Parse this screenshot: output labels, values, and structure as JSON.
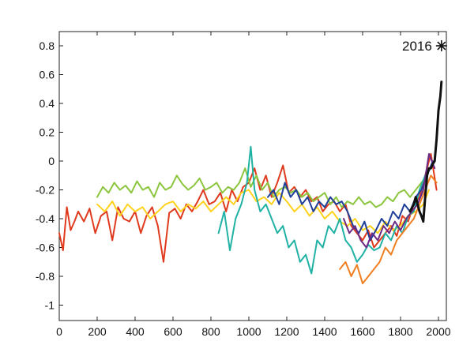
{
  "chart_data": {
    "type": "line",
    "title": "",
    "xlabel": "",
    "ylabel": "",
    "xlim": [
      0,
      2020
    ],
    "ylim": [
      -1.1,
      0.9
    ],
    "grid": false,
    "legend": "none",
    "x_ticks": [
      0,
      200,
      400,
      600,
      800,
      1000,
      1200,
      1400,
      1600,
      1800,
      2000
    ],
    "y_ticks": [
      0.8,
      0.6,
      0.4,
      0.2,
      0,
      -0.2,
      -0.4,
      -0.6,
      -0.8,
      -1
    ],
    "y_tick_labels": [
      "0.8",
      "0.6",
      "0.4",
      "0.2",
      "0",
      "-0.2",
      "-0.4",
      "-0.6",
      "-0.8",
      "-1"
    ],
    "annotation": {
      "text": "2016",
      "x": 2016,
      "y": 0.8,
      "marker": "asterisk"
    },
    "series": [
      {
        "color": "#e03a1e",
        "x": [
          0,
          20,
          40,
          60,
          80,
          100,
          130,
          160,
          190,
          220,
          250,
          280,
          310,
          340,
          370,
          400,
          430,
          460,
          490,
          520,
          550,
          580,
          610,
          640,
          670,
          700,
          730,
          760,
          790,
          820,
          850,
          880,
          910,
          940,
          970,
          1000,
          1030,
          1060,
          1090,
          1120,
          1150,
          1180,
          1210,
          1240,
          1270,
          1300,
          1330,
          1360,
          1390,
          1420,
          1450,
          1480,
          1510,
          1540,
          1570,
          1600,
          1630,
          1660,
          1690,
          1720,
          1750,
          1780,
          1810,
          1840,
          1870,
          1900,
          1930,
          1960,
          1990
        ],
        "y": [
          -0.5,
          -0.62,
          -0.32,
          -0.48,
          -0.42,
          -0.35,
          -0.42,
          -0.33,
          -0.5,
          -0.38,
          -0.35,
          -0.55,
          -0.32,
          -0.4,
          -0.42,
          -0.35,
          -0.5,
          -0.38,
          -0.32,
          -0.45,
          -0.7,
          -0.36,
          -0.33,
          -0.4,
          -0.3,
          -0.35,
          -0.28,
          -0.2,
          -0.3,
          -0.28,
          -0.22,
          -0.35,
          -0.2,
          -0.28,
          -0.18,
          -0.15,
          -0.05,
          -0.2,
          -0.1,
          -0.25,
          -0.15,
          -0.03,
          -0.22,
          -0.18,
          -0.25,
          -0.2,
          -0.28,
          -0.25,
          -0.35,
          -0.3,
          -0.28,
          -0.35,
          -0.3,
          -0.45,
          -0.5,
          -0.55,
          -0.48,
          -0.6,
          -0.55,
          -0.5,
          -0.45,
          -0.52,
          -0.38,
          -0.42,
          -0.3,
          -0.25,
          -0.1,
          0.05,
          -0.2
        ]
      },
      {
        "color": "#8cc63f",
        "x": [
          200,
          230,
          260,
          290,
          320,
          350,
          380,
          410,
          440,
          470,
          500,
          530,
          560,
          590,
          620,
          650,
          680,
          710,
          740,
          770,
          800,
          830,
          860,
          890,
          920,
          950,
          980,
          1010,
          1040,
          1070,
          1100,
          1130,
          1160,
          1190,
          1220,
          1250,
          1280,
          1310,
          1340,
          1370,
          1400,
          1430,
          1460,
          1490,
          1520,
          1550,
          1580,
          1610,
          1640,
          1670,
          1700,
          1730,
          1760,
          1790,
          1820,
          1850,
          1880,
          1910,
          1940
        ],
        "y": [
          -0.25,
          -0.18,
          -0.22,
          -0.15,
          -0.2,
          -0.17,
          -0.22,
          -0.14,
          -0.2,
          -0.18,
          -0.25,
          -0.15,
          -0.2,
          -0.18,
          -0.1,
          -0.16,
          -0.2,
          -0.17,
          -0.12,
          -0.2,
          -0.18,
          -0.15,
          -0.22,
          -0.18,
          -0.2,
          -0.15,
          -0.05,
          -0.18,
          -0.1,
          -0.2,
          -0.15,
          -0.25,
          -0.2,
          -0.18,
          -0.22,
          -0.2,
          -0.25,
          -0.22,
          -0.28,
          -0.25,
          -0.22,
          -0.3,
          -0.25,
          -0.32,
          -0.28,
          -0.3,
          -0.25,
          -0.3,
          -0.28,
          -0.32,
          -0.3,
          -0.25,
          -0.28,
          -0.22,
          -0.2,
          -0.25,
          -0.2,
          -0.15,
          -0.1
        ]
      },
      {
        "color": "#ffd21e",
        "x": [
          200,
          240,
          280,
          320,
          360,
          400,
          440,
          480,
          520,
          560,
          600,
          640,
          680,
          720,
          760,
          800,
          840,
          880,
          920,
          960,
          1000,
          1040,
          1080,
          1120,
          1160,
          1200,
          1240,
          1280,
          1320,
          1360,
          1400,
          1440,
          1480,
          1520,
          1560,
          1600,
          1640,
          1680,
          1720,
          1760,
          1800,
          1840,
          1880,
          1920,
          1950
        ],
        "y": [
          -0.3,
          -0.35,
          -0.28,
          -0.38,
          -0.3,
          -0.35,
          -0.32,
          -0.4,
          -0.35,
          -0.3,
          -0.28,
          -0.35,
          -0.3,
          -0.33,
          -0.28,
          -0.35,
          -0.3,
          -0.25,
          -0.3,
          -0.22,
          -0.2,
          -0.28,
          -0.25,
          -0.3,
          -0.22,
          -0.28,
          -0.35,
          -0.3,
          -0.38,
          -0.32,
          -0.4,
          -0.35,
          -0.42,
          -0.45,
          -0.4,
          -0.48,
          -0.45,
          -0.5,
          -0.42,
          -0.48,
          -0.45,
          -0.38,
          -0.35,
          -0.3,
          -0.2
        ]
      },
      {
        "color": "#20b2a4",
        "x": [
          840,
          870,
          900,
          930,
          960,
          990,
          1010,
          1030,
          1060,
          1090,
          1120,
          1150,
          1180,
          1210,
          1240,
          1270,
          1300,
          1330,
          1360,
          1390,
          1420,
          1450,
          1480,
          1510,
          1540,
          1570,
          1600,
          1630,
          1660,
          1690,
          1720,
          1750,
          1780,
          1810,
          1840,
          1870,
          1900,
          1930,
          1960
        ],
        "y": [
          -0.5,
          -0.35,
          -0.62,
          -0.4,
          -0.3,
          -0.15,
          0.1,
          -0.2,
          -0.35,
          -0.3,
          -0.4,
          -0.5,
          -0.45,
          -0.6,
          -0.55,
          -0.7,
          -0.65,
          -0.78,
          -0.55,
          -0.6,
          -0.45,
          -0.5,
          -0.4,
          -0.55,
          -0.6,
          -0.7,
          -0.65,
          -0.58,
          -0.62,
          -0.6,
          -0.5,
          -0.55,
          -0.45,
          -0.5,
          -0.38,
          -0.35,
          -0.2,
          -0.1,
          -0.05
        ]
      },
      {
        "color": "#1f3f99",
        "x": [
          1100,
          1130,
          1160,
          1190,
          1220,
          1250,
          1280,
          1310,
          1340,
          1370,
          1400,
          1430,
          1460,
          1490,
          1520,
          1550,
          1580,
          1610,
          1640,
          1670,
          1700,
          1730,
          1760,
          1790,
          1820,
          1850,
          1880,
          1910,
          1940,
          1970
        ],
        "y": [
          -0.25,
          -0.2,
          -0.3,
          -0.15,
          -0.25,
          -0.2,
          -0.3,
          -0.25,
          -0.35,
          -0.28,
          -0.32,
          -0.25,
          -0.3,
          -0.28,
          -0.35,
          -0.45,
          -0.5,
          -0.42,
          -0.55,
          -0.48,
          -0.4,
          -0.45,
          -0.35,
          -0.4,
          -0.3,
          -0.35,
          -0.25,
          -0.2,
          -0.1,
          0.0
        ]
      },
      {
        "color": "#6b2a86",
        "x": [
          1500,
          1530,
          1560,
          1590,
          1620,
          1650,
          1680,
          1710,
          1740,
          1770,
          1800,
          1830,
          1860,
          1890,
          1920,
          1950,
          1980
        ],
        "y": [
          -0.4,
          -0.5,
          -0.45,
          -0.55,
          -0.6,
          -0.5,
          -0.55,
          -0.45,
          -0.5,
          -0.42,
          -0.48,
          -0.4,
          -0.35,
          -0.3,
          -0.2,
          0.05,
          -0.05
        ]
      },
      {
        "color": "#f07f22",
        "x": [
          1480,
          1510,
          1540,
          1570,
          1600,
          1630,
          1660,
          1690,
          1720,
          1750,
          1780,
          1810,
          1840,
          1870,
          1900,
          1930,
          1960,
          1990
        ],
        "y": [
          -0.75,
          -0.7,
          -0.8,
          -0.72,
          -0.85,
          -0.8,
          -0.75,
          -0.7,
          -0.6,
          -0.65,
          -0.55,
          -0.5,
          -0.45,
          -0.4,
          -0.3,
          -0.2,
          -0.1,
          -0.15
        ]
      },
      {
        "color": "#111111",
        "x": [
          1850,
          1870,
          1880,
          1890,
          1900,
          1910,
          1920,
          1930,
          1940,
          1950,
          1960,
          1970,
          1980,
          1990,
          2000,
          2010,
          2016
        ],
        "y": [
          -0.35,
          -0.3,
          -0.25,
          -0.3,
          -0.35,
          -0.38,
          -0.42,
          -0.25,
          -0.1,
          -0.05,
          -0.05,
          -0.02,
          0.0,
          0.15,
          0.35,
          0.45,
          0.55
        ]
      }
    ]
  }
}
